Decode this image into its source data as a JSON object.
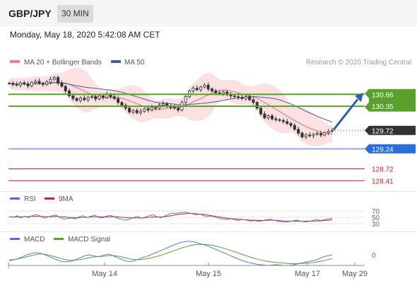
{
  "header": {
    "symbol": "GBP/JPY",
    "timeframe": "30 MIN"
  },
  "datetime": "Monday, May 18, 2020 5:42:08 AM CET",
  "colors": {
    "price_candle": "#333333",
    "ma50": "#4060a0",
    "bollinger_fill": "#f8c8c8",
    "ma20": "#e07070",
    "resistance": "#5aa02c",
    "current": "#333333",
    "pivot": "#2a6fd8",
    "support": "#cc2020",
    "rsi": "#4a70d0",
    "rsi_ma": "#d02020",
    "macd": "#4a70d0",
    "macd_signal": "#5aa02c",
    "arrow": "#2a60b0"
  },
  "chart_data": [
    {
      "type": "candlestick",
      "legend": [
        {
          "name": "MA 20 + Bollinger Bands",
          "color": "#f08080"
        },
        {
          "name": "MA 50",
          "color": "#4060a0"
        }
      ],
      "copyright": "Research © 2020 Trading Central",
      "y_range": [
        128.25,
        131.2
      ],
      "x_ticks": [
        "May 14",
        "May 15",
        "May 17",
        "May 29"
      ],
      "levels": [
        {
          "label": "130.66",
          "value": 130.66,
          "kind": "resistance"
        },
        {
          "label": "130.35",
          "value": 130.35,
          "kind": "resistance"
        },
        {
          "label": "129.72",
          "value": 129.72,
          "kind": "current"
        },
        {
          "label": "129.24",
          "value": 129.24,
          "kind": "pivot"
        },
        {
          "label": "128.72",
          "value": 128.72,
          "kind": "support"
        },
        {
          "label": "128.41",
          "value": 128.41,
          "kind": "support"
        }
      ],
      "forecast_arrow": {
        "from": 129.72,
        "to": 130.66,
        "direction": "up"
      },
      "close": [
        130.95,
        130.92,
        130.9,
        130.96,
        130.93,
        130.88,
        130.97,
        131.0,
        130.95,
        130.92,
        130.98,
        131.05,
        131.1,
        130.95,
        130.87,
        130.75,
        130.62,
        130.55,
        130.5,
        130.56,
        130.52,
        130.58,
        130.6,
        130.54,
        130.62,
        130.58,
        130.66,
        130.6,
        130.55,
        130.45,
        130.38,
        130.3,
        130.2,
        130.24,
        130.18,
        130.22,
        130.28,
        130.25,
        130.32,
        130.3,
        130.38,
        130.42,
        130.35,
        130.32,
        130.3,
        130.25,
        130.45,
        130.6,
        130.75,
        130.82,
        130.78,
        130.85,
        130.9,
        130.8,
        130.75,
        130.7,
        130.68,
        130.72,
        130.65,
        130.62,
        130.6,
        130.58,
        130.55,
        130.6,
        130.52,
        130.45,
        130.3,
        130.15,
        130.05,
        130.1,
        130.02,
        130.0,
        129.98,
        129.95,
        129.9,
        129.85,
        129.75,
        129.65,
        129.55,
        129.6,
        129.58,
        129.62,
        129.64,
        129.6,
        129.66,
        129.7,
        129.72
      ]
    },
    {
      "type": "line",
      "title": "RSI",
      "legend": [
        {
          "name": "RSI",
          "color": "#4a70d0"
        },
        {
          "name": "9MA",
          "color": "#d02020"
        }
      ],
      "y_ticks": [
        70,
        50,
        30
      ],
      "y_range": [
        0,
        100
      ],
      "series": [
        {
          "name": "RSI",
          "values": [
            52,
            50,
            55,
            48,
            53,
            49,
            56,
            58,
            54,
            47,
            51,
            55,
            57,
            50,
            44,
            46,
            48,
            45,
            52,
            55,
            49,
            53,
            57,
            50,
            48,
            54,
            56,
            52,
            46,
            43,
            41,
            44,
            50,
            53,
            47,
            51,
            55,
            58,
            52,
            49,
            54,
            60,
            63,
            62,
            65,
            66,
            64,
            61,
            58,
            60,
            55,
            52,
            54,
            50,
            47,
            45,
            43,
            46,
            42,
            40,
            44,
            41,
            38,
            40,
            37,
            39,
            42,
            44,
            41,
            38,
            36,
            35,
            37,
            39,
            41,
            38,
            36,
            37,
            40,
            43,
            40,
            42,
            45,
            47
          ]
        },
        {
          "name": "9MA",
          "values": [
            51,
            51,
            52,
            51,
            52,
            52,
            53,
            53,
            53,
            52,
            52,
            52,
            53,
            52,
            51,
            50,
            49,
            48,
            49,
            50,
            50,
            51,
            52,
            52,
            51,
            51,
            52,
            52,
            51,
            50,
            49,
            48,
            48,
            48,
            48,
            49,
            50,
            51,
            51,
            51,
            52,
            54,
            56,
            58,
            60,
            61,
            62,
            62,
            61,
            60,
            59,
            57,
            55,
            53,
            51,
            49,
            47,
            46,
            45,
            44,
            43,
            42,
            41,
            41,
            40,
            40,
            40,
            41,
            41,
            40,
            39,
            38,
            38,
            38,
            38,
            38,
            38,
            38,
            38,
            39,
            39,
            40,
            41,
            42
          ]
        }
      ]
    },
    {
      "type": "line",
      "title": "MACD",
      "legend": [
        {
          "name": "MACD",
          "color": "#4a70d0"
        },
        {
          "name": "MACD Signal",
          "color": "#5aa02c"
        }
      ],
      "y_ticks": [
        0
      ],
      "y_range": [
        -1,
        1
      ],
      "series": [
        {
          "name": "MACD",
          "values": [
            -0.35,
            -0.3,
            -0.25,
            -0.15,
            -0.05,
            0.05,
            0.1,
            0.12,
            0.08,
            0.0,
            -0.1,
            -0.2,
            -0.3,
            -0.38,
            -0.42,
            -0.4,
            -0.35,
            -0.25,
            -0.15,
            -0.05,
            0.0,
            -0.05,
            -0.1,
            -0.08,
            0.0,
            0.05,
            -0.05,
            -0.15,
            -0.25,
            -0.35,
            -0.4,
            -0.38,
            -0.3,
            -0.2,
            -0.12,
            -0.05,
            0.05,
            0.15,
            0.25,
            0.35,
            0.45,
            0.55,
            0.65,
            0.72,
            0.78,
            0.8,
            0.78,
            0.72,
            0.65,
            0.58,
            0.5,
            0.4,
            0.3,
            0.2,
            0.1,
            0.0,
            -0.1,
            -0.2,
            -0.3,
            -0.38,
            -0.45,
            -0.5,
            -0.55,
            -0.58,
            -0.6,
            -0.62,
            -0.6,
            -0.58,
            -0.6,
            -0.62,
            -0.63,
            -0.6,
            -0.55,
            -0.5,
            -0.45,
            -0.4,
            -0.35,
            -0.3,
            -0.2,
            -0.1,
            -0.05,
            0.0
          ]
        },
        {
          "name": "MACD Signal",
          "values": [
            -0.3,
            -0.28,
            -0.25,
            -0.2,
            -0.14,
            -0.08,
            -0.02,
            0.03,
            0.05,
            0.03,
            -0.02,
            -0.08,
            -0.15,
            -0.22,
            -0.28,
            -0.32,
            -0.33,
            -0.31,
            -0.27,
            -0.22,
            -0.17,
            -0.13,
            -0.11,
            -0.1,
            -0.07,
            -0.04,
            -0.04,
            -0.07,
            -0.11,
            -0.17,
            -0.23,
            -0.27,
            -0.29,
            -0.28,
            -0.25,
            -0.21,
            -0.16,
            -0.1,
            -0.03,
            0.05,
            0.13,
            0.22,
            0.3,
            0.38,
            0.45,
            0.52,
            0.57,
            0.6,
            0.62,
            0.61,
            0.59,
            0.55,
            0.5,
            0.44,
            0.37,
            0.3,
            0.22,
            0.14,
            0.06,
            -0.02,
            -0.1,
            -0.17,
            -0.24,
            -0.3,
            -0.35,
            -0.39,
            -0.42,
            -0.45,
            -0.47,
            -0.49,
            -0.51,
            -0.52,
            -0.52,
            -0.51,
            -0.5,
            -0.48,
            -0.46,
            -0.43,
            -0.39,
            -0.34,
            -0.28,
            -0.22
          ]
        }
      ]
    }
  ]
}
